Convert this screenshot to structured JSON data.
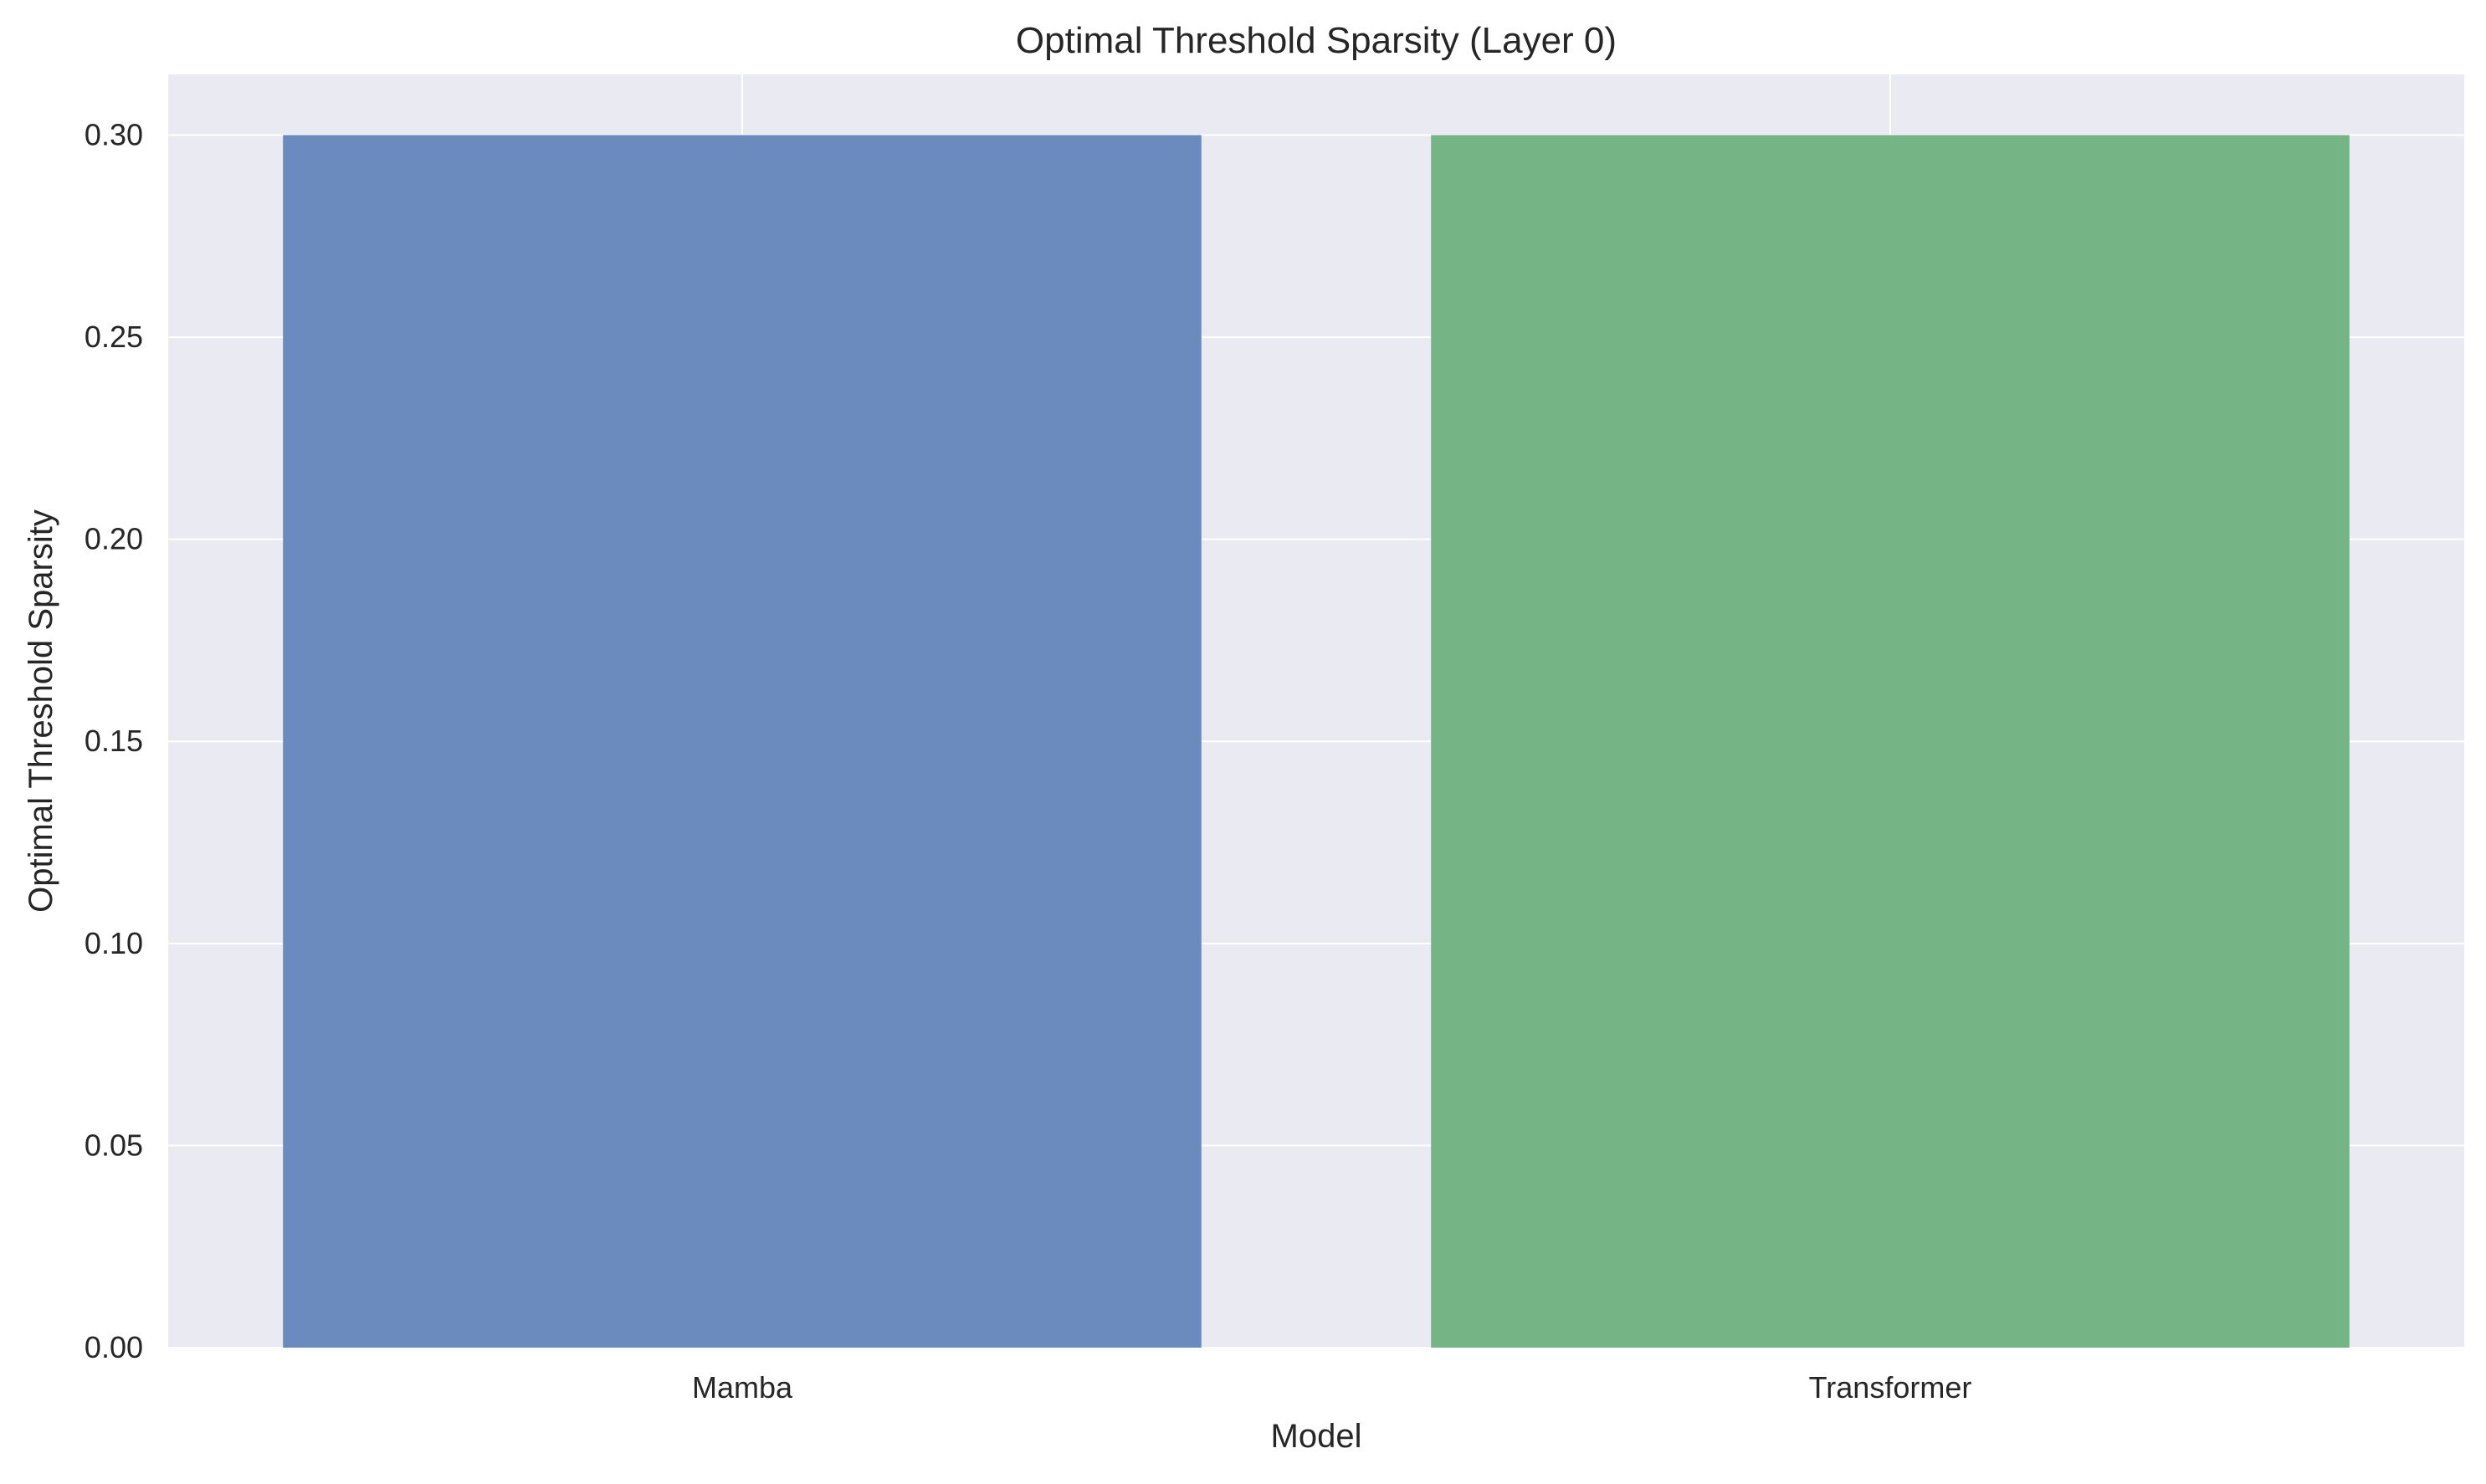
{
  "chart_data": {
    "type": "bar",
    "title": "Optimal Threshold Sparsity (Layer 0)",
    "xlabel": "Model",
    "ylabel": "Optimal Threshold Sparsity",
    "categories": [
      "Mamba",
      "Transformer"
    ],
    "values": [
      0.3,
      0.3
    ],
    "colors": [
      "#6b8bbe",
      "#74b485"
    ],
    "ylim": [
      0,
      0.315
    ],
    "yticks": [
      0.0,
      0.05,
      0.1,
      0.15,
      0.2,
      0.25,
      0.3
    ],
    "ytick_labels": [
      "0.00",
      "0.05",
      "0.10",
      "0.15",
      "0.20",
      "0.25",
      "0.30"
    ],
    "grid": true,
    "background_color": "#eaeaf2",
    "grid_color": "#ffffff"
  }
}
